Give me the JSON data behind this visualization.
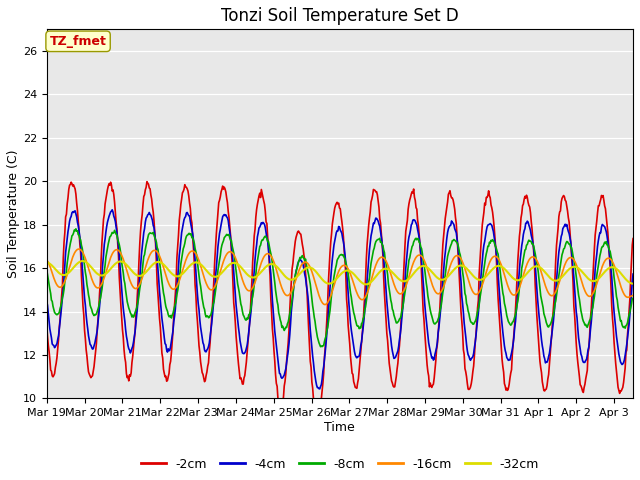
{
  "title": "Tonzi Soil Temperature Set D",
  "xlabel": "Time",
  "ylabel": "Soil Temperature (C)",
  "ylim": [
    10,
    27
  ],
  "yticks": [
    10,
    12,
    14,
    16,
    18,
    20,
    22,
    24,
    26
  ],
  "xtick_labels": [
    "Mar 19",
    "Mar 20",
    "Mar 21",
    "Mar 22",
    "Mar 23",
    "Mar 24",
    "Mar 25",
    "Mar 26",
    "Mar 27",
    "Mar 28",
    "Mar 29",
    "Mar 30",
    "Mar 31",
    "Apr 1",
    "Apr 2",
    "Apr 3"
  ],
  "annotation_text": "TZ_fmet",
  "annotation_color": "#cc0000",
  "annotation_bg": "#ffffcc",
  "annotation_edge": "#999900",
  "bg_color": "#e8e8e8",
  "series_colors": [
    "#dd0000",
    "#0000cc",
    "#00aa00",
    "#ff8800",
    "#dddd00"
  ],
  "series_labels": [
    "-2cm",
    "-4cm",
    "-8cm",
    "-16cm",
    "-32cm"
  ],
  "title_fontsize": 12,
  "axis_label_fontsize": 9,
  "tick_fontsize": 8
}
